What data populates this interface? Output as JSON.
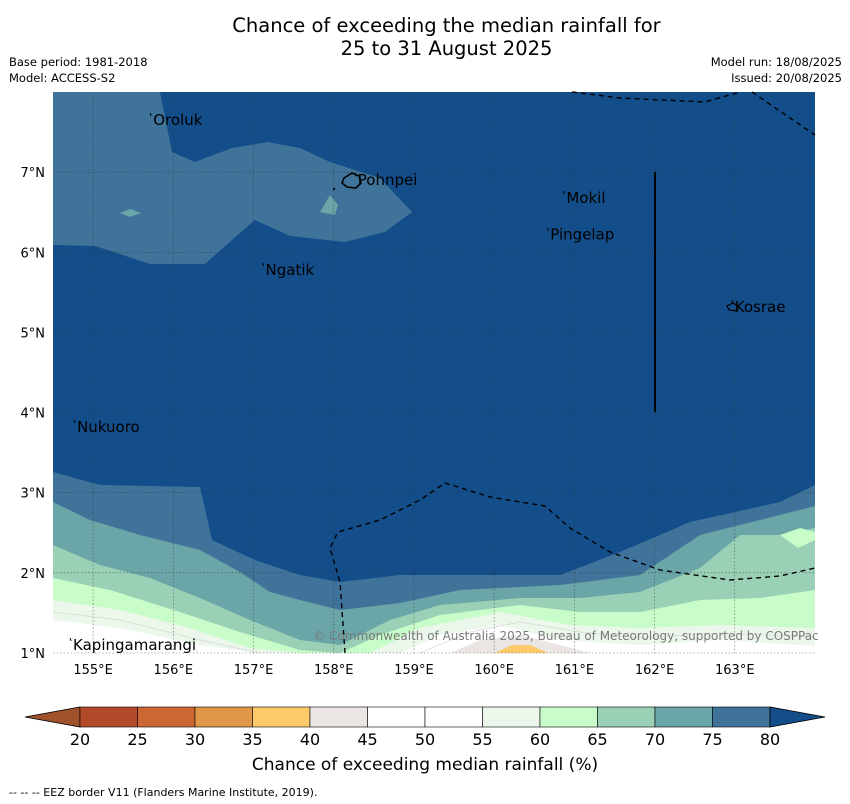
{
  "title_line1": "Chance of exceeding the median rainfall for",
  "title_line2": "25 to 31 August 2025",
  "base_period": "Base period: 1981-2018",
  "model": "Model: ACCESS-S2",
  "model_run": "Model run: 18/08/2025",
  "issued": "Issued: 20/08/2025",
  "copyright": "© Commonwealth of Australia 2025, Bureau of Meteorology, supported by COSPPac",
  "colorbar_label": "Chance of exceeding median rainfall (%)",
  "footnote": "--  --  -- EEZ border V11 (Flanders Marine Institute, 2019).",
  "map": {
    "lon_labels": [
      "155°E",
      "156°E",
      "157°E",
      "158°E",
      "159°E",
      "160°E",
      "161°E",
      "162°E",
      "163°E"
    ],
    "lat_labels": [
      "1°N",
      "2°N",
      "3°N",
      "4°N",
      "5°N",
      "6°N",
      "7°N"
    ],
    "places": [
      {
        "name": "Oroluk",
        "lon": 155.75,
        "lat": 7.65
      },
      {
        "name": "Pohnpei",
        "lon": 158.3,
        "lat": 6.9
      },
      {
        "name": "Mokil",
        "lon": 160.9,
        "lat": 6.68
      },
      {
        "name": "Pingelap",
        "lon": 160.7,
        "lat": 6.22
      },
      {
        "name": "Ngatik",
        "lon": 157.15,
        "lat": 5.78
      },
      {
        "name": "Kosrae",
        "lon": 163.0,
        "lat": 5.32
      },
      {
        "name": "Nukuoro",
        "lon": 154.8,
        "lat": 3.82
      },
      {
        "name": "Kapingamarangi",
        "lon": 154.75,
        "lat": 1.1
      }
    ]
  },
  "colorbar": {
    "ticks": [
      "20",
      "25",
      "30",
      "35",
      "40",
      "45",
      "50",
      "55",
      "60",
      "65",
      "70",
      "75",
      "80"
    ],
    "colors": [
      "#a0522d",
      "#b24a2a",
      "#cc6733",
      "#e09848",
      "#fdca6b",
      "#ebe6e4",
      "#ffffff",
      "#ffffff",
      "#eaf7ea",
      "#c8fcc8",
      "#9ad0b6",
      "#6aa5a8",
      "#3f7399",
      "#134d8a"
    ]
  }
}
